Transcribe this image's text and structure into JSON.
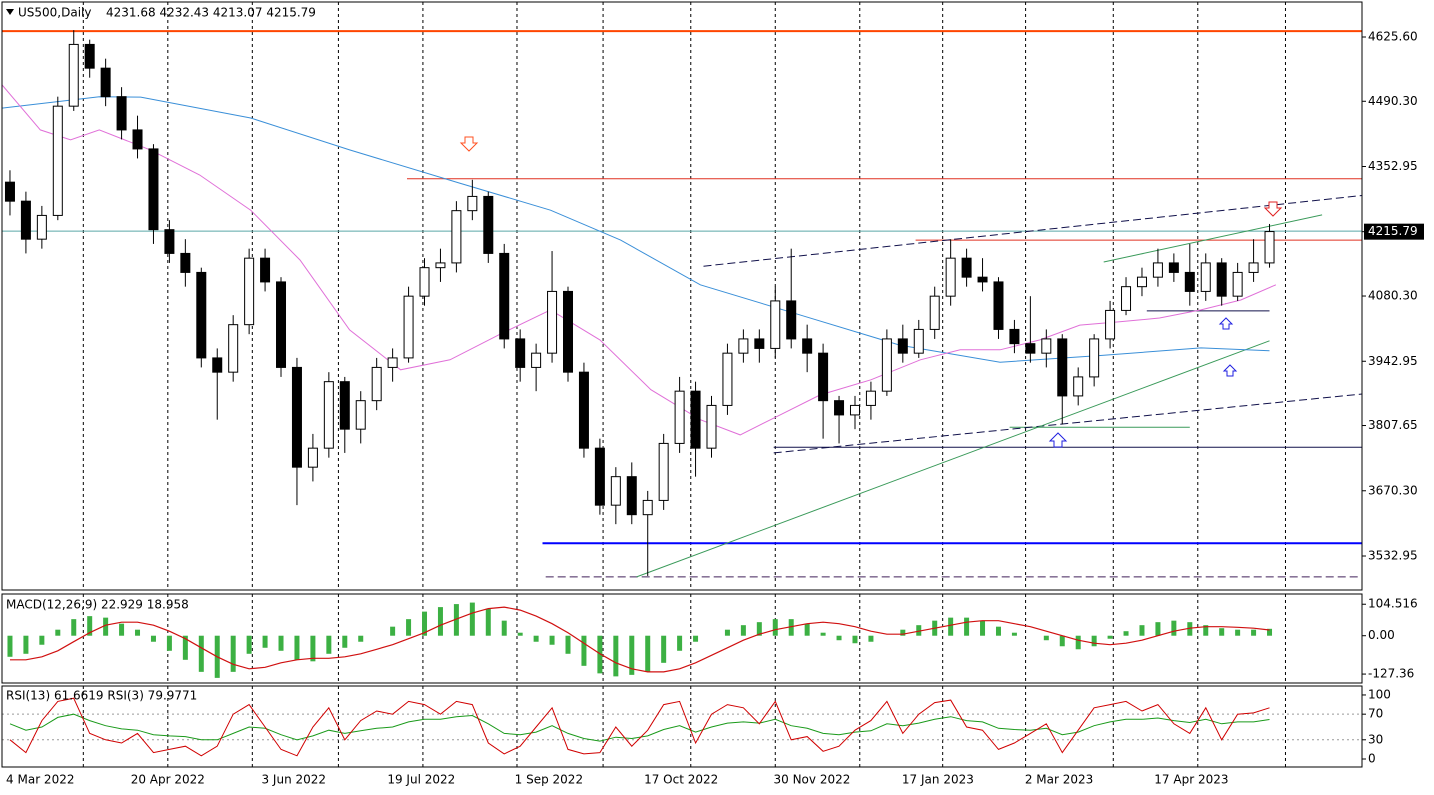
{
  "chart_data": [
    {
      "type": "candlestick",
      "title": "US500,Daily",
      "ohlc_text": "4231.68 4232.43 4213.07 4215.79",
      "xlim": [
        0,
        85.3
      ],
      "ylim": [
        3461.4,
        4699.3
      ],
      "yticks": [
        {
          "value": 4625.6,
          "label": "4625.60"
        },
        {
          "value": 4490.3,
          "label": "4490.30"
        },
        4352.95,
        {
          "value": 4080.3,
          "label": "4080.30"
        },
        4215.79,
        3942.95,
        3807.65,
        {
          "value": 3670.3,
          "label": "3670.30"
        },
        3532.95
      ],
      "current_price": 4215.79,
      "xgrid": [
        5.1,
        10.4,
        15.7,
        21.1,
        26.4,
        32.3,
        37.7,
        43.2,
        48.5,
        53.8,
        59.0,
        64.2,
        69.7,
        75.0,
        80.5
      ],
      "xticks": [
        {
          "value": 2.4,
          "label": "4 Mar 2022"
        },
        {
          "value": 10.4,
          "label": "20 Apr 2022"
        },
        {
          "value": 18.3,
          "label": "3 Jun 2022"
        },
        {
          "value": 26.3,
          "label": "19 Jul 2022"
        },
        {
          "value": 34.3,
          "label": "1 Sep 2022"
        },
        {
          "value": 42.6,
          "label": "17 Oct 2022"
        },
        {
          "value": 50.8,
          "label": "30 Nov 2022"
        },
        {
          "value": 58.7,
          "label": "17 Jan 2023"
        },
        {
          "value": 66.3,
          "label": "2 Mar 2023"
        },
        {
          "value": 74.6,
          "label": "17 Apr 2023"
        }
      ],
      "ohlc": [
        [
          4320,
          4345,
          4250,
          4280
        ],
        [
          4280,
          4300,
          4170,
          4200
        ],
        [
          4200,
          4270,
          4180,
          4250
        ],
        [
          4250,
          4500,
          4240,
          4480
        ],
        [
          4480,
          4640,
          4470,
          4610
        ],
        [
          4610,
          4620,
          4540,
          4560
        ],
        [
          4560,
          4580,
          4480,
          4500
        ],
        [
          4500,
          4520,
          4410,
          4430
        ],
        [
          4430,
          4460,
          4370,
          4390
        ],
        [
          4390,
          4400,
          4190,
          4220
        ],
        [
          4220,
          4240,
          4150,
          4170
        ],
        [
          4170,
          4200,
          4100,
          4130
        ],
        [
          4130,
          4140,
          3930,
          3950
        ],
        [
          3950,
          3970,
          3820,
          3920
        ],
        [
          3920,
          4040,
          3900,
          4020
        ],
        [
          4020,
          4180,
          4000,
          4160
        ],
        [
          4160,
          4180,
          4090,
          4110
        ],
        [
          4110,
          4120,
          3910,
          3930
        ],
        [
          3930,
          3950,
          3640,
          3720
        ],
        [
          3720,
          3790,
          3690,
          3760
        ],
        [
          3760,
          3920,
          3740,
          3900
        ],
        [
          3900,
          3910,
          3750,
          3800
        ],
        [
          3800,
          3880,
          3770,
          3860
        ],
        [
          3860,
          3950,
          3840,
          3930
        ],
        [
          3930,
          3970,
          3900,
          3950
        ],
        [
          3950,
          4100,
          3940,
          4080
        ],
        [
          4080,
          4160,
          4060,
          4140
        ],
        [
          4140,
          4180,
          4110,
          4150
        ],
        [
          4150,
          4280,
          4130,
          4260
        ],
        [
          4260,
          4325,
          4240,
          4290
        ],
        [
          4290,
          4300,
          4150,
          4170
        ],
        [
          4170,
          4190,
          3970,
          3990
        ],
        [
          3990,
          4010,
          3900,
          3930
        ],
        [
          3930,
          3980,
          3880,
          3960
        ],
        [
          3960,
          4175,
          3940,
          4090
        ],
        [
          4090,
          4100,
          3900,
          3920
        ],
        [
          3920,
          3940,
          3740,
          3760
        ],
        [
          3760,
          3780,
          3620,
          3640
        ],
        [
          3640,
          3720,
          3600,
          3700
        ],
        [
          3700,
          3730,
          3600,
          3620
        ],
        [
          3620,
          3670,
          3491,
          3650
        ],
        [
          3650,
          3790,
          3630,
          3770
        ],
        [
          3770,
          3910,
          3750,
          3880
        ],
        [
          3880,
          3900,
          3700,
          3760
        ],
        [
          3760,
          3870,
          3740,
          3850
        ],
        [
          3850,
          3980,
          3830,
          3960
        ],
        [
          3960,
          4010,
          3940,
          3990
        ],
        [
          3990,
          4010,
          3940,
          3970
        ],
        [
          3970,
          4100,
          3950,
          4070
        ],
        [
          4070,
          4180,
          3970,
          3990
        ],
        [
          3990,
          4020,
          3920,
          3960
        ],
        [
          3960,
          3980,
          3780,
          3860
        ],
        [
          3860,
          3870,
          3770,
          3830
        ],
        [
          3830,
          3870,
          3800,
          3850
        ],
        [
          3850,
          3900,
          3820,
          3880
        ],
        [
          3880,
          4010,
          3870,
          3990
        ],
        [
          3990,
          4020,
          3940,
          3960
        ],
        [
          3960,
          4030,
          3950,
          4010
        ],
        [
          4010,
          4100,
          3990,
          4080
        ],
        [
          4080,
          4200,
          4060,
          4160
        ],
        [
          4160,
          4180,
          4100,
          4120
        ],
        [
          4120,
          4160,
          4090,
          4110
        ],
        [
          4110,
          4120,
          3990,
          4010
        ],
        [
          4010,
          4030,
          3960,
          3980
        ],
        [
          3980,
          4080,
          3940,
          3960
        ],
        [
          3960,
          4010,
          3930,
          3990
        ],
        [
          3990,
          4000,
          3810,
          3870
        ],
        [
          3870,
          3930,
          3850,
          3910
        ],
        [
          3910,
          4000,
          3890,
          3990
        ],
        [
          3990,
          4070,
          3970,
          4050
        ],
        [
          4050,
          4120,
          4040,
          4100
        ],
        [
          4100,
          4140,
          4080,
          4120
        ],
        [
          4120,
          4180,
          4100,
          4150
        ],
        [
          4150,
          4170,
          4110,
          4130
        ],
        [
          4130,
          4190,
          4060,
          4090
        ],
        [
          4090,
          4170,
          4070,
          4150
        ],
        [
          4150,
          4160,
          4060,
          4080
        ],
        [
          4080,
          4150,
          4070,
          4130
        ],
        [
          4130,
          4200,
          4110,
          4150
        ],
        [
          4150,
          4232,
          4140,
          4216
        ]
      ],
      "series": [
        {
          "color": "#3a8fd8",
          "x": [
            0,
            6.1,
            8.7,
            15.6,
            21.8,
            28.7,
            34.4,
            38.8,
            43.8,
            50.1,
            56.3,
            62.6,
            68.9,
            75.2,
            79.5
          ],
          "values": [
            4476,
            4500,
            4499,
            4455,
            4388,
            4318,
            4261,
            4198,
            4104,
            4040,
            3977,
            3941,
            3955,
            3971,
            3965
          ]
        },
        {
          "color": "#e070d8",
          "x": [
            0,
            2.4,
            4.3,
            6.1,
            9.3,
            12.4,
            15.6,
            18.7,
            21.8,
            25.0,
            28.1,
            31.2,
            34.4,
            37.5,
            40.7,
            43.8,
            46.3,
            48.8,
            51.3,
            54.5,
            57.6,
            60.1,
            62.6,
            65.1,
            67.6,
            70.1,
            72.6,
            75.2,
            77.7,
            79.9
          ],
          "values": [
            4525,
            4430,
            4409,
            4430,
            4388,
            4335,
            4261,
            4156,
            4009,
            3925,
            3946,
            3999,
            4051,
            3988,
            3883,
            3820,
            3788,
            3830,
            3872,
            3904,
            3946,
            3967,
            3967,
            3988,
            4019,
            4026,
            4034,
            4051,
            4072,
            4104
          ]
        }
      ],
      "lines": [
        {
          "x": [
            0,
            85.3
          ],
          "values": [
            4638,
            4638
          ],
          "color": "#ff4500",
          "width": 2,
          "dash": false
        },
        {
          "x": [
            0,
            85.3
          ],
          "values": [
            4217,
            4217
          ],
          "color": "#5aa8a8",
          "width": 1,
          "dash": false
        },
        {
          "x": [
            25.4,
            85.3
          ],
          "values": [
            4327,
            4327
          ],
          "color": "#e03020",
          "width": 1,
          "dash": false
        },
        {
          "x": [
            57.3,
            85.3
          ],
          "values": [
            4198,
            4198
          ],
          "color": "#e03020",
          "width": 1,
          "dash": false
        },
        {
          "x": [
            33.9,
            85.3
          ],
          "values": [
            3560,
            3560
          ],
          "color": "#0000ff",
          "width": 2,
          "dash": false
        },
        {
          "x": [
            34.1,
            85.3
          ],
          "values": [
            3489,
            3489
          ],
          "color": "#40205a",
          "width": 1,
          "dash": true
        },
        {
          "x": [
            48.4,
            85.3
          ],
          "values": [
            3762,
            3762
          ],
          "color": "#10104a",
          "width": 1,
          "dash": false
        },
        {
          "x": [
            63.2,
            74.5
          ],
          "values": [
            3804,
            3804
          ],
          "color": "#3a9a5a",
          "width": 1,
          "dash": false
        },
        {
          "x": [
            71.8,
            79.5
          ],
          "values": [
            4049,
            4049
          ],
          "color": "#10104a",
          "width": 1,
          "dash": false
        },
        {
          "x": [
            44.0,
            85.3
          ],
          "values": [
            4143,
            4292
          ],
          "color": "#10104a",
          "width": 1,
          "dash": true
        },
        {
          "x": [
            48.4,
            85.3
          ],
          "values": [
            3750,
            3874
          ],
          "color": "#10104a",
          "width": 1,
          "dash": true
        },
        {
          "x": [
            39.8,
            79.5
          ],
          "values": [
            3489,
            3986
          ],
          "color": "#3a9a5a",
          "width": 1,
          "dash": false
        },
        {
          "x": [
            69.1,
            82.8
          ],
          "values": [
            4152,
            4251
          ],
          "color": "#3a9a5a",
          "width": 1,
          "dash": false
        }
      ]
    },
    {
      "type": "macd",
      "title": "MACD(12,26,9) 22.929 18.958",
      "ylim": [
        -157,
        138.5
      ],
      "yticks": [
        104.516,
        {
          "value": 0,
          "label": "0.00"
        },
        -127.36
      ],
      "series": [
        {
          "color": "#3cb043",
          "values": [
            -70,
            -60,
            -30,
            20,
            55,
            65,
            60,
            40,
            20,
            -20,
            -50,
            -80,
            -120,
            -140,
            -120,
            -60,
            -40,
            -50,
            -80,
            -85,
            -60,
            -40,
            -20,
            0,
            30,
            55,
            80,
            95,
            105,
            110,
            90,
            50,
            10,
            -20,
            -30,
            -60,
            -100,
            -125,
            -135,
            -130,
            -120,
            -90,
            -50,
            -20,
            0,
            20,
            35,
            45,
            55,
            55,
            40,
            10,
            -15,
            -25,
            -20,
            0,
            20,
            35,
            50,
            60,
            60,
            50,
            30,
            10,
            0,
            -15,
            -35,
            -45,
            -35,
            -10,
            15,
            35,
            45,
            50,
            45,
            35,
            25,
            20,
            20,
            22.929
          ]
        },
        {
          "color": "#d01010",
          "values": [
            -80,
            -80,
            -70,
            -50,
            -20,
            10,
            35,
            45,
            45,
            35,
            15,
            -10,
            -40,
            -70,
            -95,
            -110,
            -105,
            -90,
            -80,
            -75,
            -75,
            -70,
            -60,
            -45,
            -30,
            -10,
            10,
            35,
            55,
            75,
            90,
            95,
            85,
            65,
            40,
            10,
            -25,
            -60,
            -90,
            -110,
            -120,
            -120,
            -110,
            -90,
            -65,
            -40,
            -15,
            5,
            20,
            30,
            40,
            45,
            40,
            30,
            15,
            5,
            5,
            15,
            25,
            35,
            45,
            50,
            50,
            40,
            30,
            15,
            0,
            -15,
            -25,
            -30,
            -25,
            -15,
            0,
            15,
            25,
            30,
            30,
            28,
            25,
            18.958
          ]
        }
      ]
    },
    {
      "type": "rsi",
      "title": "RSI(13) 61.6619  RSI(3) 79.9771",
      "ylim": [
        -12.5,
        114
      ],
      "yticks": [
        100,
        70,
        30,
        0
      ],
      "levels": [
        70,
        30
      ],
      "series": [
        {
          "color": "#1a9a1a",
          "values": [
            55,
            45,
            50,
            65,
            70,
            60,
            52,
            47,
            45,
            38,
            36,
            35,
            30,
            30,
            40,
            50,
            48,
            38,
            30,
            36,
            45,
            40,
            44,
            48,
            50,
            58,
            62,
            62,
            66,
            68,
            55,
            40,
            38,
            42,
            52,
            40,
            32,
            28,
            34,
            32,
            36,
            46,
            52,
            42,
            50,
            56,
            58,
            56,
            62,
            52,
            48,
            40,
            38,
            42,
            44,
            55,
            52,
            56,
            62,
            66,
            60,
            58,
            48,
            46,
            45,
            48,
            38,
            42,
            52,
            58,
            62,
            62,
            64,
            60,
            57,
            62,
            55,
            58,
            58,
            61.6619
          ]
        },
        {
          "color": "#d00000",
          "values": [
            30,
            10,
            60,
            90,
            95,
            40,
            30,
            25,
            40,
            10,
            15,
            20,
            5,
            20,
            70,
            85,
            50,
            15,
            5,
            50,
            80,
            30,
            60,
            75,
            70,
            90,
            85,
            70,
            90,
            85,
            25,
            8,
            20,
            50,
            80,
            15,
            8,
            10,
            50,
            20,
            45,
            85,
            90,
            25,
            70,
            85,
            80,
            55,
            90,
            30,
            35,
            12,
            20,
            45,
            60,
            90,
            40,
            70,
            88,
            92,
            50,
            45,
            15,
            25,
            40,
            55,
            10,
            45,
            80,
            85,
            90,
            75,
            85,
            55,
            40,
            80,
            30,
            70,
            72,
            79.9771
          ]
        }
      ]
    }
  ]
}
